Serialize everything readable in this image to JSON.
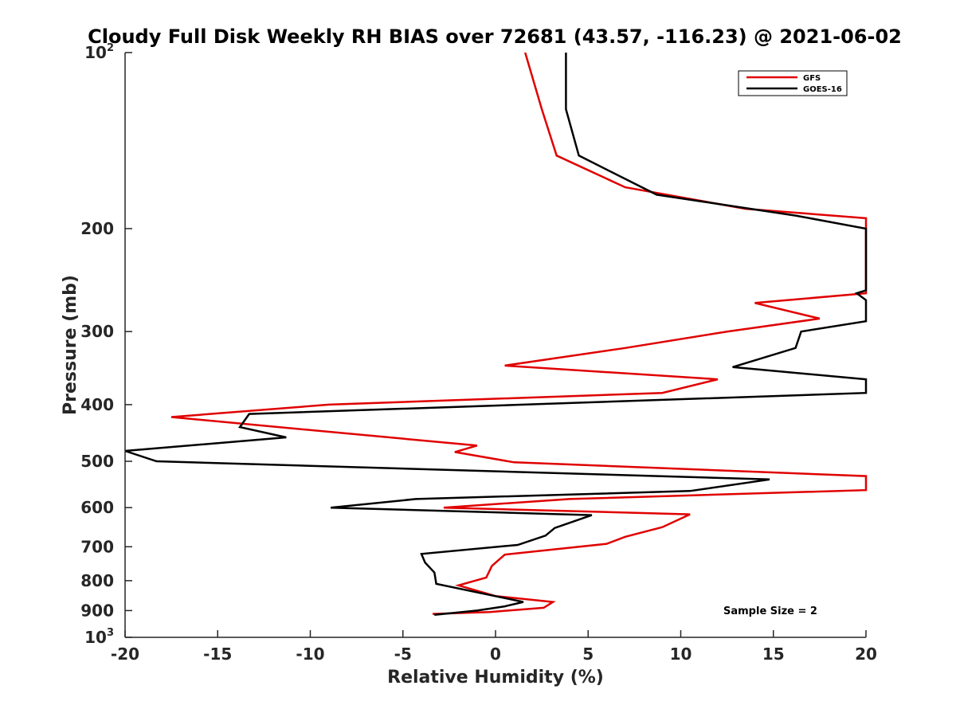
{
  "chart_data": {
    "type": "line",
    "title": "Cloudy Full Disk Weekly RH BIAS over 72681 (43.57, -116.23) @ 2021-06-02",
    "xlabel": "Relative Humidity (%)",
    "ylabel": "Pressure (mb)",
    "xlim": [
      -20,
      20
    ],
    "ylim": [
      100,
      1000
    ],
    "y_scale": "log",
    "y_reversed": true,
    "grid": false,
    "legend_position": "top-right",
    "x_ticks": [
      -20,
      -15,
      -10,
      -5,
      0,
      5,
      10,
      15,
      20
    ],
    "x_tick_labels": [
      "-20",
      "-15",
      "-10",
      "-5",
      "0",
      "5",
      "10",
      "15",
      "20"
    ],
    "y_ticks": [
      {
        "value": 100,
        "label": "10",
        "sup": "2"
      },
      {
        "value": 200,
        "label": "200",
        "sup": ""
      },
      {
        "value": 300,
        "label": "300",
        "sup": ""
      },
      {
        "value": 400,
        "label": "400",
        "sup": ""
      },
      {
        "value": 500,
        "label": "500",
        "sup": ""
      },
      {
        "value": 600,
        "label": "600",
        "sup": ""
      },
      {
        "value": 700,
        "label": "700",
        "sup": ""
      },
      {
        "value": 800,
        "label": "800",
        "sup": ""
      },
      {
        "value": 900,
        "label": "900",
        "sup": ""
      },
      {
        "value": 1000,
        "label": "10",
        "sup": "3"
      }
    ],
    "annotation": "Sample Size = 2",
    "series": [
      {
        "name": "GFS",
        "color": "#e00000",
        "points": [
          [
            1.6,
            100
          ],
          [
            2.5,
            125
          ],
          [
            3.3,
            150
          ],
          [
            7.0,
            170
          ],
          [
            13.5,
            185
          ],
          [
            20.0,
            192
          ],
          [
            20.0,
            258
          ],
          [
            14.0,
            268
          ],
          [
            17.5,
            285
          ],
          [
            12.5,
            300
          ],
          [
            7.0,
            320
          ],
          [
            0.5,
            343
          ],
          [
            12.0,
            362
          ],
          [
            9.0,
            382
          ],
          [
            -9.0,
            400
          ],
          [
            -17.5,
            420
          ],
          [
            -1.0,
            470
          ],
          [
            -2.2,
            482
          ],
          [
            1.0,
            502
          ],
          [
            20.0,
            530
          ],
          [
            20.0,
            560
          ],
          [
            4.0,
            580
          ],
          [
            -2.8,
            600
          ],
          [
            10.5,
            616
          ],
          [
            9.0,
            648
          ],
          [
            7.0,
            673
          ],
          [
            6.0,
            692
          ],
          [
            0.5,
            722
          ],
          [
            -0.2,
            755
          ],
          [
            -0.5,
            790
          ],
          [
            -2.0,
            815
          ],
          [
            0.0,
            850
          ],
          [
            3.1,
            870
          ],
          [
            2.6,
            890
          ],
          [
            -0.3,
            905
          ],
          [
            -3.4,
            912
          ]
        ]
      },
      {
        "name": "GOES-16",
        "color": "#000000",
        "points": [
          [
            3.8,
            100
          ],
          [
            3.8,
            125
          ],
          [
            4.5,
            150
          ],
          [
            8.7,
            175
          ],
          [
            16.2,
            190
          ],
          [
            20.0,
            200
          ],
          [
            20.0,
            255
          ],
          [
            19.5,
            258
          ],
          [
            20.0,
            265
          ],
          [
            20.0,
            288
          ],
          [
            16.5,
            300
          ],
          [
            16.2,
            320
          ],
          [
            12.8,
            345
          ],
          [
            20.0,
            362
          ],
          [
            20.0,
            382
          ],
          [
            -13.3,
            415
          ],
          [
            -13.8,
            437
          ],
          [
            -11.3,
            455
          ],
          [
            -20.0,
            480
          ],
          [
            -18.3,
            500
          ],
          [
            14.8,
            537
          ],
          [
            10.5,
            562
          ],
          [
            -4.3,
            580
          ],
          [
            -8.9,
            600
          ],
          [
            5.2,
            618
          ],
          [
            3.2,
            650
          ],
          [
            2.7,
            670
          ],
          [
            1.2,
            695
          ],
          [
            -4.0,
            720
          ],
          [
            -3.8,
            745
          ],
          [
            -3.3,
            775
          ],
          [
            -3.2,
            810
          ],
          [
            1.5,
            870
          ],
          [
            0.5,
            885
          ],
          [
            -1.0,
            900
          ],
          [
            -3.3,
            915
          ]
        ]
      }
    ]
  }
}
